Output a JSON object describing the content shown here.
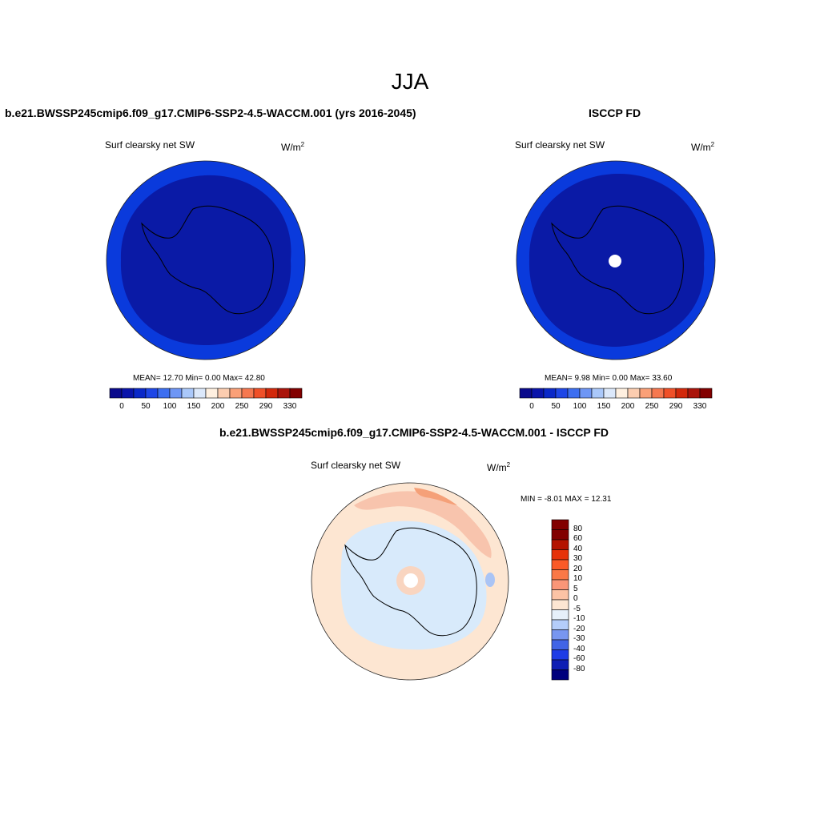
{
  "title": "JJA",
  "panels": [
    {
      "title": "b.e21.BWSSP245cmip6.f09_g17.CMIP6-SSP2-4.5-WACCM.001 (yrs 2016-2045)",
      "variable": "Surf clearsky net SW",
      "units_base": "W/m",
      "units_sup": "2",
      "stats": "MEAN=  12.70  Min=   0.00  Max=  42.80",
      "colorbar_labels": [
        "0",
        "50",
        "100",
        "150",
        "200",
        "250",
        "290",
        "330"
      ],
      "colorbar_colors": [
        "#0a0a8c",
        "#0a14aa",
        "#0a28c8",
        "#1e46e6",
        "#3c6ef0",
        "#6e96f5",
        "#aac8fa",
        "#dce8fa",
        "#fff0e0",
        "#fccdb0",
        "#faa078",
        "#f57850",
        "#f05028",
        "#d2280a",
        "#aa140a",
        "#820000"
      ]
    },
    {
      "title": "ISCCP FD",
      "variable": "Surf clearsky net SW",
      "units_base": "W/m",
      "units_sup": "2",
      "stats": "MEAN=   9.98  Min=   0.00  Max=  33.60",
      "colorbar_labels": [
        "0",
        "50",
        "100",
        "150",
        "200",
        "250",
        "290",
        "330"
      ]
    },
    {
      "title": "b.e21.BWSSP245cmip6.f09_g17.CMIP6-SSP2-4.5-WACCM.001 - ISCCP FD",
      "variable": "Surf clearsky net SW",
      "units_base": "W/m",
      "units_sup": "2",
      "minmax": "MIN =  -8.01 MAX =  12.31",
      "colorbar_labels": [
        "80",
        "60",
        "40",
        "30",
        "20",
        "10",
        "5",
        "0",
        "-5",
        "-10",
        "-20",
        "-30",
        "-40",
        "-60",
        "-80"
      ],
      "colorbar_colors": [
        "#820000",
        "#b41400",
        "#e6320a",
        "#fa5a28",
        "#fa7846",
        "#fa9678",
        "#fcc3a5",
        "#fde6d2",
        "#e6f0fa",
        "#b4cdfa",
        "#7896f0",
        "#4164e6",
        "#1e3ce6",
        "#0f1eb4",
        "#00007d"
      ]
    }
  ],
  "map_colors": {
    "land_dark_blue": "#0a1aa6",
    "ocean_blue": "#0a3adc",
    "diff_ocean_peach": "#fde6d2",
    "diff_ice_lightblue": "#d8eafb",
    "diff_orange": "#f8b096",
    "diff_blue_patch": "#aac4f5"
  }
}
